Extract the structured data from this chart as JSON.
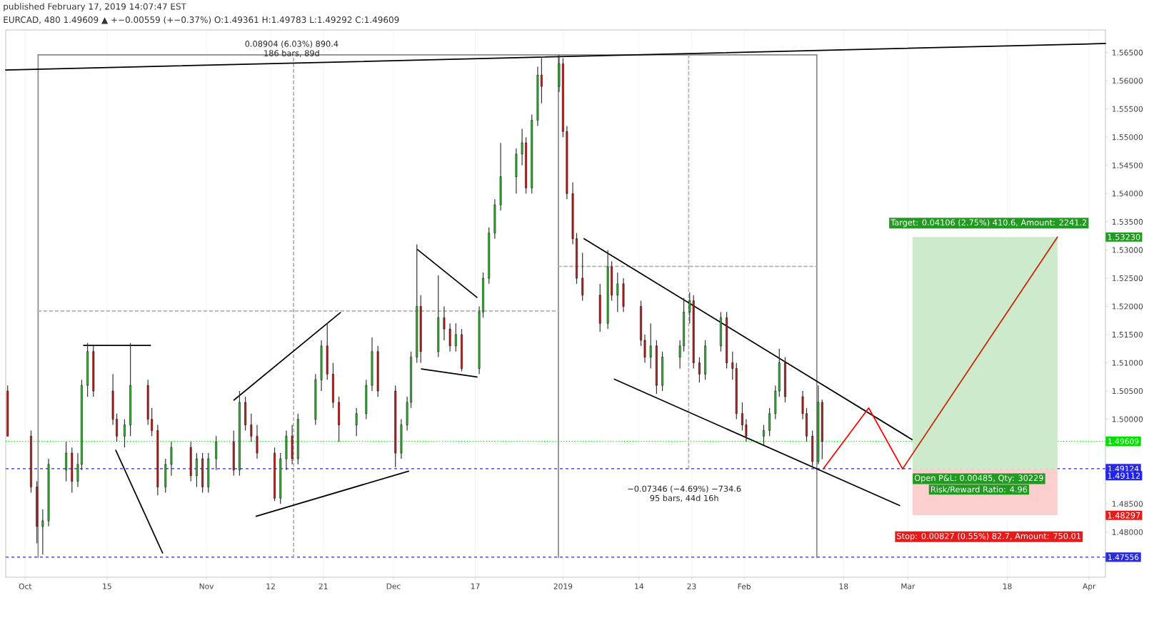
{
  "chart_data": {
    "type": "candlestick",
    "title": "published February 17, 2019 14:07:47 EST",
    "subtitle": "EURCAD, 480 1.49609 ▲ +−0.00559 (+−0.37%) O:1.49361 H:1.49783 L:1.49292 C:1.49609",
    "xlim": [
      "2018-09-27T16:00",
      "2019-04-03T19:00"
    ],
    "ylim": [
      1.472,
      1.569
    ],
    "xticks": [
      {
        "value": "2018-10-01",
        "label": "Oct"
      },
      {
        "value": "2018-10-15",
        "label": "15"
      },
      {
        "value": "2018-11-01",
        "label": "Nov"
      },
      {
        "value": "2018-11-12",
        "label": "12"
      },
      {
        "value": "2018-11-21",
        "label": "21"
      },
      {
        "value": "2018-12-03",
        "label": "Dec"
      },
      {
        "value": "2018-12-17",
        "label": "17"
      },
      {
        "value": "2019-01-01",
        "label": "2019"
      },
      {
        "value": "2019-01-14",
        "label": "14"
      },
      {
        "value": "2019-01-23",
        "label": "23"
      },
      {
        "value": "2019-02-01",
        "label": "Feb"
      },
      {
        "value": "2019-02-18",
        "label": "18"
      },
      {
        "value": "2019-03-01",
        "label": "Mar"
      },
      {
        "value": "2019-03-18",
        "label": "18"
      },
      {
        "value": "2019-04-01",
        "label": "Apr"
      }
    ],
    "yticks": [
      {
        "value": 1.475,
        "label": null
      },
      {
        "value": 1.48,
        "label": "1.48000"
      },
      {
        "value": 1.485,
        "label": "1.48500"
      },
      {
        "value": 1.49,
        "label": null
      },
      {
        "value": 1.495,
        "label": null
      },
      {
        "value": 1.5,
        "label": "1.50000"
      },
      {
        "value": 1.505,
        "label": "1.50500"
      },
      {
        "value": 1.51,
        "label": "1.51000"
      },
      {
        "value": 1.515,
        "label": "1.51500"
      },
      {
        "value": 1.52,
        "label": "1.52000"
      },
      {
        "value": 1.525,
        "label": "1.52500"
      },
      {
        "value": 1.53,
        "label": "1.53000"
      },
      {
        "value": 1.535,
        "label": "1.53500"
      },
      {
        "value": 1.54,
        "label": "1.54000"
      },
      {
        "value": 1.545,
        "label": "1.54500"
      },
      {
        "value": 1.55,
        "label": "1.55000"
      },
      {
        "value": 1.555,
        "label": "1.55500"
      },
      {
        "value": 1.56,
        "label": "1.56000"
      },
      {
        "value": 1.565,
        "label": "1.56500"
      }
    ],
    "grid": "x",
    "series": [
      {
        "type": "line",
        "x": [
          "2019-03-01T19:00",
          "2019-03-26T14:00"
        ],
        "values": [
          null,
          null
        ],
        "upper": [
          1.5323,
          1.5323
        ],
        "lower": [
          1.4912,
          1.4912
        ],
        "color": "#cdeacc"
      },
      {
        "type": "line",
        "x": [
          "2019-03-01T19:00",
          "2019-03-26T14:00"
        ],
        "values": [
          null,
          null
        ],
        "upper": [
          1.4912,
          1.4912
        ],
        "lower": [
          1.483,
          1.483
        ],
        "color": "#fccfcf"
      },
      {
        "type": "line",
        "x": [
          "2018-10-03T05:00",
          "2019-02-13T10:00"
        ],
        "values": [
          1.5646,
          1.5646
        ],
        "color": "#8a8a8a"
      },
      {
        "type": "line",
        "x": [
          "2019-02-13T10:00",
          "2019-02-13T10:00"
        ],
        "values": [
          1.5646,
          1.4755
        ],
        "color": "#8a8a8a"
      },
      {
        "type": "line",
        "x": [
          "2018-10-03T05:00",
          "2018-10-03T05:00"
        ],
        "values": [
          1.5646,
          1.4755
        ],
        "color": "#8a8a8a"
      },
      {
        "type": "line",
        "x": [
          "2018-12-31T05:00",
          "2018-12-31T05:00"
        ],
        "values": [
          1.5646,
          1.4755
        ],
        "color": "#8a8a8a"
      },
      {
        "type": "line",
        "x": [
          "2018-11-15T22:00",
          "2018-11-15T22:00"
        ],
        "values": [
          1.4755,
          1.564
        ],
        "color": "#b0b0b0",
        "line_style": "dashed"
      },
      {
        "type": "line",
        "x": [
          "2018-10-03T05:00",
          "2018-12-31T05:00"
        ],
        "values": [
          1.5192,
          1.5192
        ],
        "color": "#b0b0b0",
        "line_style": "dashed"
      },
      {
        "type": "line",
        "x": [
          "2019-01-22T12:00",
          "2019-01-22T12:00"
        ],
        "values": [
          1.5646,
          1.4912
        ],
        "color": "#b0b0b0",
        "line_style": "dashed"
      },
      {
        "type": "line",
        "x": [
          "2018-12-31T05:00",
          "2019-02-13T10:00"
        ],
        "values": [
          1.5271,
          1.5271
        ],
        "color": "#b0b0b0",
        "line_style": "dashed"
      },
      {
        "type": "line",
        "x": [
          "2018-09-27T16:00",
          "2019-04-03T19:00"
        ],
        "values": [
          1.5619,
          1.5666
        ],
        "color": "#000000"
      },
      {
        "type": "line",
        "x": [
          "2018-10-11T00:00",
          "2018-10-22T10:00"
        ],
        "values": [
          1.5131,
          1.5131
        ],
        "color": "#000000"
      },
      {
        "type": "line",
        "x": [
          "2018-10-16T12:00",
          "2018-10-24T12:00"
        ],
        "values": [
          1.4945,
          1.4763
        ],
        "color": "#000000"
      },
      {
        "type": "line",
        "x": [
          "2018-11-05T17:00",
          "2018-11-23T22:00"
        ],
        "values": [
          1.5034,
          1.5189
        ],
        "color": "#000000"
      },
      {
        "type": "line",
        "x": [
          "2018-11-09T12:00",
          "2018-12-05T14:00"
        ],
        "values": [
          1.4828,
          1.4908
        ],
        "color": "#000000"
      },
      {
        "type": "line",
        "x": [
          "2018-12-07T02:00",
          "2018-12-17T07:00"
        ],
        "values": [
          1.5301,
          1.5216
        ],
        "color": "#000000"
      },
      {
        "type": "line",
        "x": [
          "2018-12-07T19:00",
          "2018-12-17T07:00"
        ],
        "values": [
          1.5089,
          1.5075
        ],
        "color": "#000000"
      },
      {
        "type": "line",
        "x": [
          "2019-01-04T14:00",
          "2019-03-01T17:00"
        ],
        "values": [
          1.532,
          1.4964
        ],
        "color": "#000000"
      },
      {
        "type": "line",
        "x": [
          "2019-01-09T19:00",
          "2019-02-27T14:00"
        ],
        "values": [
          1.5071,
          1.4847
        ],
        "color": "#000000"
      },
      {
        "type": "line",
        "x": [
          "2019-02-14T12:00",
          "2019-02-22T07:00",
          "2019-02-28T02:00"
        ],
        "values": [
          1.4912,
          1.502,
          1.4912
        ],
        "color": "#ff0000"
      },
      {
        "type": "line",
        "x": [
          "2019-02-28T02:00",
          "2019-03-26T14:00"
        ],
        "values": [
          1.4912,
          1.5323
        ],
        "color": "#cc2200"
      },
      {
        "x": [
          "2018-09-28T00:00",
          "2018-10-02T00:00",
          "2018-10-03T00:00",
          "2018-10-04T00:00",
          "2018-10-05T00:00",
          "2018-10-08T00:00",
          "2018-10-09T00:00",
          "2018-10-10T00:00",
          "2018-10-10T16:00",
          "2018-10-11T16:00",
          "2018-10-12T16:00",
          "2018-10-16T00:00",
          "2018-10-16T16:00",
          "2018-10-18T00:00",
          "2018-10-19T00:00",
          "2018-10-22T00:00",
          "2018-10-22T16:00",
          "2018-10-23T16:00",
          "2018-10-25T00:00",
          "2018-10-26T00:00",
          "2018-10-29T08:00",
          "2018-10-30T08:00",
          "2018-10-31T08:00",
          "2018-11-01T08:00",
          "2018-11-02T16:00",
          "2018-11-05T16:00",
          "2018-11-06T16:00",
          "2018-11-07T16:00",
          "2018-11-08T16:00",
          "2018-11-09T16:00",
          "2018-11-12T16:00",
          "2018-11-13T16:00",
          "2018-11-14T16:00",
          "2018-11-15T16:00",
          "2018-11-16T16:00",
          "2018-11-19T16:00",
          "2018-11-20T16:00",
          "2018-11-21T16:00",
          "2018-11-22T16:00",
          "2018-11-23T16:00",
          "2018-11-26T16:00",
          "2018-11-28T08:00",
          "2018-11-29T08:00",
          "2018-11-30T08:00",
          "2018-12-03T08:00",
          "2018-12-04T08:00",
          "2018-12-05T08:00",
          "2018-12-06T00:00",
          "2018-12-07T00:00",
          "2018-12-07T16:00",
          "2018-12-10T16:00",
          "2018-12-11T16:00",
          "2018-12-12T16:00",
          "2018-12-13T16:00",
          "2018-12-14T16:00",
          "2018-12-17T16:00",
          "2018-12-18T08:00",
          "2018-12-19T08:00",
          "2018-12-20T08:00",
          "2018-12-21T08:00",
          "2018-12-24T00:00",
          "2018-12-25T00:00",
          "2018-12-25T16:00",
          "2018-12-26T16:00",
          "2018-12-27T16:00",
          "2018-12-28T08:00",
          "2018-12-31T08:00",
          "2019-01-01T00:00",
          "2019-01-01T16:00",
          "2019-01-02T16:00",
          "2019-01-03T08:00",
          "2019-01-04T08:00",
          "2019-01-07T08:00",
          "2019-01-08T16:00",
          "2019-01-09T08:00",
          "2019-01-10T08:00",
          "2019-01-11T08:00",
          "2019-01-14T08:00",
          "2019-01-15T00:00",
          "2019-01-16T00:00",
          "2019-01-17T00:00",
          "2019-01-18T00:00",
          "2019-01-21T00:00",
          "2019-01-21T16:00",
          "2019-01-22T16:00",
          "2019-01-23T08:00",
          "2019-01-24T08:00",
          "2019-01-25T08:00",
          "2019-01-28T00:00",
          "2019-01-29T00:00",
          "2019-01-30T00:00",
          "2019-01-30T16:00",
          "2019-01-31T16:00",
          "2019-02-01T08:00",
          "2019-02-04T08:00",
          "2019-02-05T08:00",
          "2019-02-06T08:00",
          "2019-02-07T00:00",
          "2019-02-08T00:00",
          "2019-02-11T00:00",
          "2019-02-11T16:00",
          "2019-02-12T16:00",
          "2019-02-13T16:00",
          "2019-02-14T08:00"
        ],
        "ohlc": [
          [
            1.505,
            1.506,
            1.497,
            1.497
          ],
          [
            1.497,
            1.498,
            1.487,
            1.488
          ],
          [
            1.488,
            1.489,
            1.478,
            1.481
          ],
          [
            1.481,
            1.484,
            1.476,
            1.482
          ],
          [
            1.482,
            1.493,
            1.481,
            1.492
          ],
          [
            1.491,
            1.496,
            1.489,
            1.494
          ],
          [
            1.494,
            1.495,
            1.487,
            1.489
          ],
          [
            1.489,
            1.494,
            1.488,
            1.492
          ],
          [
            1.492,
            1.507,
            1.491,
            1.506
          ],
          [
            1.506,
            1.5135,
            1.504,
            1.512
          ],
          [
            1.512,
            1.513,
            1.504,
            1.505
          ],
          [
            1.505,
            1.508,
            1.499,
            1.5
          ],
          [
            1.5,
            1.501,
            1.496,
            1.497
          ],
          [
            1.497,
            1.5,
            1.495,
            1.499
          ],
          [
            1.499,
            1.5135,
            1.497,
            1.506
          ],
          [
            1.506,
            1.507,
            1.499,
            1.5
          ],
          [
            1.5,
            1.502,
            1.497,
            1.498
          ],
          [
            1.498,
            1.499,
            1.4865,
            1.488
          ],
          [
            1.488,
            1.493,
            1.487,
            1.492
          ],
          [
            1.492,
            1.496,
            1.49,
            1.495
          ],
          [
            1.495,
            1.496,
            1.489,
            1.49
          ],
          [
            1.49,
            1.494,
            1.488,
            1.493
          ],
          [
            1.493,
            1.494,
            1.487,
            1.488
          ],
          [
            1.488,
            1.494,
            1.487,
            1.493
          ],
          [
            1.493,
            1.497,
            1.491,
            1.496
          ],
          [
            1.496,
            1.498,
            1.49,
            1.491
          ],
          [
            1.491,
            1.505,
            1.49,
            1.503
          ],
          [
            1.503,
            1.504,
            1.498,
            1.499
          ],
          [
            1.499,
            1.501,
            1.496,
            1.497
          ],
          [
            1.497,
            1.499,
            1.493,
            1.494
          ],
          [
            1.494,
            1.495,
            1.4855,
            1.486
          ],
          [
            1.486,
            1.494,
            1.485,
            1.493
          ],
          [
            1.493,
            1.498,
            1.491,
            1.497
          ],
          [
            1.497,
            1.499,
            1.492,
            1.493
          ],
          [
            1.493,
            1.501,
            1.492,
            1.5
          ],
          [
            1.5,
            1.508,
            1.499,
            1.507
          ],
          [
            1.507,
            1.514,
            1.505,
            1.513
          ],
          [
            1.513,
            1.517,
            1.507,
            1.508
          ],
          [
            1.508,
            1.51,
            1.502,
            1.503
          ],
          [
            1.503,
            1.504,
            1.496,
            1.499
          ],
          [
            1.499,
            1.502,
            1.497,
            1.501
          ],
          [
            1.501,
            1.507,
            1.5,
            1.506
          ],
          [
            1.506,
            1.5145,
            1.505,
            1.512
          ],
          [
            1.512,
            1.513,
            1.504,
            1.505
          ],
          [
            1.505,
            1.506,
            1.4915,
            1.494
          ],
          [
            1.494,
            1.5,
            1.493,
            1.499
          ],
          [
            1.499,
            1.504,
            1.498,
            1.503
          ],
          [
            1.503,
            1.512,
            1.502,
            1.511
          ],
          [
            1.511,
            1.531,
            1.51,
            1.52
          ],
          [
            1.52,
            1.522,
            1.51,
            1.512
          ],
          [
            1.512,
            1.5255,
            1.511,
            1.518
          ],
          [
            1.518,
            1.52,
            1.514,
            1.516
          ],
          [
            1.516,
            1.517,
            1.512,
            1.513
          ],
          [
            1.513,
            1.517,
            1.512,
            1.515
          ],
          [
            1.515,
            1.516,
            1.5085,
            1.509
          ],
          [
            1.509,
            1.52,
            1.508,
            1.519
          ],
          [
            1.519,
            1.526,
            1.518,
            1.525
          ],
          [
            1.525,
            1.534,
            1.524,
            1.533
          ],
          [
            1.533,
            1.539,
            1.532,
            1.538
          ],
          [
            1.538,
            1.549,
            1.537,
            1.543
          ],
          [
            1.543,
            1.548,
            1.54,
            1.547
          ],
          [
            1.547,
            1.5515,
            1.545,
            1.549
          ],
          [
            1.549,
            1.55,
            1.54,
            1.541
          ],
          [
            1.541,
            1.554,
            1.54,
            1.553
          ],
          [
            1.553,
            1.5625,
            1.552,
            1.561
          ],
          [
            1.561,
            1.564,
            1.556,
            1.559
          ],
          [
            1.559,
            1.5645,
            1.558,
            1.563
          ],
          [
            1.563,
            1.564,
            1.55,
            1.551
          ],
          [
            1.551,
            1.552,
            1.539,
            1.54
          ],
          [
            1.54,
            1.542,
            1.531,
            1.532
          ],
          [
            1.532,
            1.533,
            1.524,
            1.525
          ],
          [
            1.525,
            1.5295,
            1.521,
            1.522
          ],
          [
            1.522,
            1.524,
            1.5155,
            1.517
          ],
          [
            1.517,
            1.53,
            1.516,
            1.527
          ],
          [
            1.527,
            1.528,
            1.521,
            1.522
          ],
          [
            1.522,
            1.526,
            1.519,
            1.524
          ],
          [
            1.524,
            1.525,
            1.519,
            1.52
          ],
          [
            1.52,
            1.521,
            1.513,
            1.514
          ],
          [
            1.514,
            1.515,
            1.51,
            1.511
          ],
          [
            1.511,
            1.517,
            1.509,
            1.513
          ],
          [
            1.513,
            1.514,
            1.5045,
            1.506
          ],
          [
            1.506,
            1.512,
            1.505,
            1.511
          ],
          [
            1.511,
            1.514,
            1.509,
            1.513
          ],
          [
            1.513,
            1.5215,
            1.512,
            1.519
          ],
          [
            1.519,
            1.5225,
            1.517,
            1.521
          ],
          [
            1.521,
            1.522,
            1.509,
            1.51
          ],
          [
            1.51,
            1.511,
            1.5065,
            1.508
          ],
          [
            1.508,
            1.514,
            1.507,
            1.513
          ],
          [
            1.513,
            1.519,
            1.512,
            1.518
          ],
          [
            1.518,
            1.519,
            1.509,
            1.51
          ],
          [
            1.51,
            1.512,
            1.507,
            1.509
          ],
          [
            1.509,
            1.51,
            1.5,
            1.501
          ],
          [
            1.501,
            1.503,
            1.498,
            1.499
          ],
          [
            1.499,
            1.5,
            1.496,
            1.497
          ],
          [
            1.497,
            1.499,
            1.4955,
            1.498
          ],
          [
            1.498,
            1.502,
            1.497,
            1.501
          ],
          [
            1.501,
            1.506,
            1.5,
            1.505
          ],
          [
            1.505,
            1.5125,
            1.504,
            1.51
          ],
          [
            1.51,
            1.511,
            1.503,
            1.504
          ],
          [
            1.504,
            1.505,
            1.5,
            1.501
          ],
          [
            1.501,
            1.502,
            1.496,
            1.497
          ],
          [
            1.497,
            1.498,
            1.4915,
            1.4925
          ],
          [
            1.4925,
            1.506,
            1.492,
            1.503
          ],
          [
            1.503,
            1.5035,
            1.49292,
            1.49609
          ]
        ],
        "colors": [
          "#cc1a1a",
          "#cc1a1a",
          "#cc1a1a",
          "#2ebd2e",
          "#2ebd2e",
          "#2ebd2e",
          "#cc1a1a",
          "#2ebd2e",
          "#2ebd2e",
          "#2ebd2e",
          "#cc1a1a",
          "#cc1a1a",
          "#cc1a1a",
          "#2ebd2e",
          "#2ebd2e",
          "#cc1a1a",
          "#cc1a1a",
          "#cc1a1a",
          "#2ebd2e",
          "#2ebd2e",
          "#cc1a1a",
          "#2ebd2e",
          "#cc1a1a",
          "#2ebd2e",
          "#2ebd2e",
          "#cc1a1a",
          "#2ebd2e",
          "#cc1a1a",
          "#cc1a1a",
          "#cc1a1a",
          "#cc1a1a",
          "#2ebd2e",
          "#2ebd2e",
          "#cc1a1a",
          "#2ebd2e",
          "#2ebd2e",
          "#2ebd2e",
          "#cc1a1a",
          "#cc1a1a",
          "#cc1a1a",
          "#2ebd2e",
          "#2ebd2e",
          "#2ebd2e",
          "#cc1a1a",
          "#cc1a1a",
          "#2ebd2e",
          "#2ebd2e",
          "#2ebd2e",
          "#2ebd2e",
          "#cc1a1a",
          "#2ebd2e",
          "#cc1a1a",
          "#cc1a1a",
          "#2ebd2e",
          "#cc1a1a",
          "#2ebd2e",
          "#2ebd2e",
          "#2ebd2e",
          "#2ebd2e",
          "#2ebd2e",
          "#2ebd2e",
          "#2ebd2e",
          "#cc1a1a",
          "#2ebd2e",
          "#2ebd2e",
          "#cc1a1a",
          "#2ebd2e",
          "#cc1a1a",
          "#cc1a1a",
          "#cc1a1a",
          "#cc1a1a",
          "#cc1a1a",
          "#cc1a1a",
          "#2ebd2e",
          "#cc1a1a",
          "#2ebd2e",
          "#cc1a1a",
          "#cc1a1a",
          "#cc1a1a",
          "#2ebd2e",
          "#cc1a1a",
          "#2ebd2e",
          "#2ebd2e",
          "#2ebd2e",
          "#2ebd2e",
          "#cc1a1a",
          "#cc1a1a",
          "#2ebd2e",
          "#2ebd2e",
          "#cc1a1a",
          "#cc1a1a",
          "#cc1a1a",
          "#cc1a1a",
          "#cc1a1a",
          "#2ebd2e",
          "#2ebd2e",
          "#2ebd2e",
          "#2ebd2e",
          "#cc1a1a",
          "#cc1a1a",
          "#cc1a1a",
          "#cc1a1a",
          "#2ebd2e",
          "#cc1a1a"
        ]
      }
    ],
    "ref_lines": [
      {
        "axis": "y",
        "value": 1.49609,
        "label": "1.49609",
        "color": "#00e000",
        "line_style": "dotted"
      },
      {
        "axis": "y",
        "value": 1.49124,
        "label": "1.49124",
        "color": "#2a2ae0",
        "line_style": "dashed"
      },
      {
        "axis": "y",
        "value": 1.47556,
        "label": "1.47556",
        "color": "#2a2ae0",
        "line_style": "dashed"
      }
    ],
    "annotations": [
      "0.08904 (6.03%) 890.4",
      "186 bars, 89d",
      "−0.07346 (−4.69%) −734.6",
      "95 bars, 44d 16h",
      "Target: 0.04106 (2.75%) 410.6, Amount: 2241.2",
      "Open P&L: 0.00485, Qty: 30229",
      "Risk/Reward Ratio: 4.96",
      "Stop: 0.00827 (0.55%) 82.7, Amount: 750.01",
      "1.53230",
      "1.49112",
      "1.48297"
    ]
  }
}
